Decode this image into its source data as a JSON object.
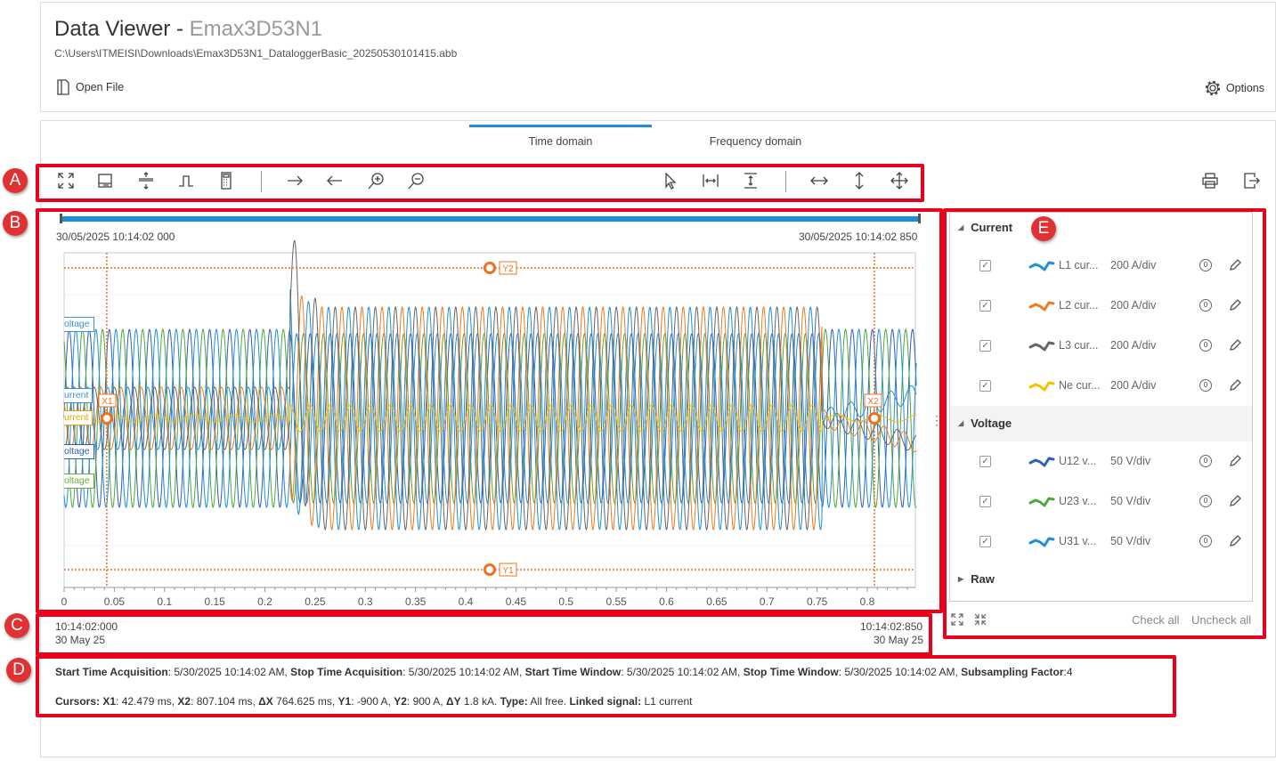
{
  "header": {
    "title": "Data Viewer - ",
    "title_file": "Emax3D53N1",
    "path": "C:\\Users\\ITMEISI\\Downloads\\Emax3D53N1_DataloggerBasic_20250530101415.abb",
    "open_file": "Open File",
    "options": "Options"
  },
  "tabs": [
    {
      "label": "Time domain",
      "active": true
    },
    {
      "label": "Frequency domain",
      "active": false
    }
  ],
  "badges": {
    "a": "A",
    "b": "B",
    "c": "C",
    "d": "D",
    "e": "E"
  },
  "toolbar": {
    "icons": [
      "fit-all-icon",
      "panel-icon",
      "split-vertical-icon",
      "pulse-icon",
      "calculator-icon",
      "arrow-right-icon",
      "arrow-left-icon",
      "zoom-in-icon",
      "zoom-out-icon",
      "pointer-icon",
      "horizontal-measure-icon",
      "vertical-measure-icon",
      "horizontal-pan-icon",
      "vertical-pan-icon",
      "move-icon"
    ],
    "right_icons": [
      "print-icon",
      "export-icon"
    ]
  },
  "range": {
    "start": "30/05/2025 10:14:02 000",
    "end": "30/05/2025 10:14:02 850",
    "progress_start": 0,
    "progress_end": 1,
    "color": "#1e8fd6"
  },
  "chart_data": {
    "type": "line",
    "x_ticks": [
      "0",
      "0.05",
      "0.1",
      "0.15",
      "0.2",
      "0.25",
      "0.3",
      "0.35",
      "0.4",
      "0.45",
      "0.5",
      "0.55",
      "0.6",
      "0.65",
      "0.7",
      "0.75",
      "0.8"
    ],
    "xlim": [
      0,
      0.85
    ],
    "signal_labels": [
      {
        "text": "oltage",
        "color": "#3a8fd6"
      },
      {
        "text": "urrent",
        "color": "#3a8fd6"
      },
      {
        "text": "urrent",
        "color": "#e0a800"
      },
      {
        "text": "oltage",
        "color": "#2e5fb8"
      },
      {
        "text": "oltage",
        "color": "#6aaa3c"
      }
    ],
    "cursors": {
      "x1": {
        "label": "X1",
        "value_ms": 42.479
      },
      "x2": {
        "label": "X2",
        "value_ms": 807.104
      },
      "y1": {
        "label": "Y1",
        "value": -900
      },
      "y2": {
        "label": "Y2",
        "value": 900
      },
      "color": "#f07020"
    }
  },
  "time_footer": {
    "start_time": "10:14:02:000",
    "start_date": "30 May 25",
    "end_time": "10:14:02:850",
    "end_date": "30 May 25"
  },
  "info": {
    "line1": [
      [
        "Start Time Acquisition",
        ": 5/30/2025 10:14:02 AM, "
      ],
      [
        "Stop Time Acquisition",
        ": 5/30/2025 10:14:02 AM, "
      ],
      [
        "Start Time Window",
        ": 5/30/2025 10:14:02 AM, "
      ],
      [
        "Stop Time Window",
        ": 5/30/2025 10:14:02 AM, "
      ],
      [
        "Subsampling Factor",
        ":4"
      ]
    ],
    "line2": [
      [
        "Cursors: X1",
        ": 42.479 ms, "
      ],
      [
        "X2",
        ": 807.104 ms, "
      ],
      [
        "ΔX",
        " 764.625 ms, "
      ],
      [
        "Y1",
        ": -900 A, "
      ],
      [
        "Y2",
        ": 900 A, "
      ],
      [
        "ΔY",
        " 1.8 kA. "
      ],
      [
        "Type:",
        " All free. "
      ],
      [
        "Linked signal:",
        " L1 current"
      ]
    ]
  },
  "signals": {
    "groups": [
      {
        "name": "Current",
        "expanded": true,
        "items": [
          {
            "name": "L1 cur...",
            "scale": "200 A/div",
            "color": "#1e8fd6",
            "checked": true
          },
          {
            "name": "L2 cur...",
            "scale": "200 A/div",
            "color": "#f07a1a",
            "checked": true
          },
          {
            "name": "L3 cur...",
            "scale": "200 A/div",
            "color": "#666666",
            "checked": true
          },
          {
            "name": "Ne cur...",
            "scale": "200 A/div",
            "color": "#f2c200",
            "checked": true
          }
        ]
      },
      {
        "name": "Voltage",
        "expanded": true,
        "items": [
          {
            "name": "U12 v...",
            "scale": "50 V/div",
            "color": "#2e5fb8",
            "checked": true
          },
          {
            "name": "U23 v...",
            "scale": "50 V/div",
            "color": "#4ea83a",
            "checked": true
          },
          {
            "name": "U31 v...",
            "scale": "50 V/div",
            "color": "#1e8fd6",
            "checked": true
          }
        ]
      },
      {
        "name": "Raw",
        "expanded": false,
        "items": []
      }
    ],
    "check_all": "Check all",
    "uncheck_all": "Uncheck all"
  }
}
